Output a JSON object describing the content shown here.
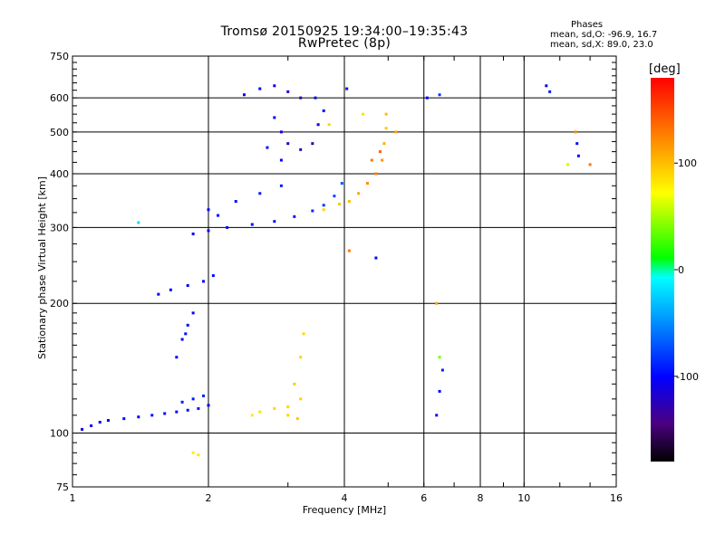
{
  "title_line1": "Tromsø 20150925 19:34:00–19:35:43",
  "title_line2": "RwPretec (8p)",
  "stats": {
    "heading": "Phases",
    "line1": "mean, sd,O: -96.9, 16.7",
    "line2": "mean, sd,X:  89.0, 23.0"
  },
  "colorbar": {
    "unit": "[deg]",
    "ticks": [
      {
        "value": 100,
        "label": "100"
      },
      {
        "value": 0,
        "label": "0"
      },
      {
        "value": -100,
        "label": "-100"
      }
    ],
    "range": [
      -180,
      180
    ]
  },
  "chart_data": {
    "type": "scatter",
    "xlabel": "Frequency [MHz]",
    "ylabel": "Stationary phase Virtual Height [km]",
    "x_scale": "log",
    "y_scale": "log",
    "xlim": [
      1,
      16
    ],
    "ylim": [
      75,
      750
    ],
    "xticks": [
      {
        "value": 1,
        "label": "1"
      },
      {
        "value": 2,
        "label": "2"
      },
      {
        "value": 4,
        "label": "4"
      },
      {
        "value": 6,
        "label": "6"
      },
      {
        "value": 8,
        "label": "8"
      },
      {
        "value": 10,
        "label": "10"
      },
      {
        "value": 16,
        "label": "16"
      }
    ],
    "yticks": [
      {
        "value": 75,
        "label": "75"
      },
      {
        "value": 100,
        "label": "100"
      },
      {
        "value": 200,
        "label": "200"
      },
      {
        "value": 300,
        "label": "300"
      },
      {
        "value": 400,
        "label": "400"
      },
      {
        "value": 500,
        "label": "500"
      },
      {
        "value": 600,
        "label": "600"
      },
      {
        "value": 750,
        "label": "750"
      }
    ],
    "grid": true,
    "color_variable": "phase (deg)",
    "points": [
      [
        1.05,
        102,
        -105
      ],
      [
        1.1,
        104,
        -102
      ],
      [
        1.15,
        106,
        -100
      ],
      [
        1.2,
        107,
        -104
      ],
      [
        1.3,
        108,
        -98
      ],
      [
        1.4,
        109,
        -100
      ],
      [
        1.5,
        110,
        -95
      ],
      [
        1.6,
        111,
        -97
      ],
      [
        1.7,
        112,
        -99
      ],
      [
        1.8,
        113,
        -96
      ],
      [
        1.9,
        114,
        -94
      ],
      [
        2.0,
        116,
        -100
      ],
      [
        1.75,
        118,
        -90
      ],
      [
        1.85,
        120,
        -92
      ],
      [
        1.95,
        122,
        -88
      ],
      [
        1.7,
        150,
        -100
      ],
      [
        1.75,
        165,
        -102
      ],
      [
        1.8,
        178,
        -98
      ],
      [
        1.85,
        190,
        -104
      ],
      [
        1.78,
        170,
        -96
      ],
      [
        1.55,
        210,
        -100
      ],
      [
        1.65,
        215,
        -98
      ],
      [
        1.8,
        220,
        -102
      ],
      [
        1.95,
        225,
        -99
      ],
      [
        2.05,
        232,
        -97
      ],
      [
        1.85,
        290,
        -100
      ],
      [
        2.0,
        295,
        -102
      ],
      [
        2.2,
        300,
        -96
      ],
      [
        2.5,
        305,
        -98
      ],
      [
        2.8,
        310,
        -95
      ],
      [
        3.1,
        318,
        -92
      ],
      [
        3.4,
        328,
        -85
      ],
      [
        3.6,
        338,
        -80
      ],
      [
        3.8,
        355,
        -75
      ],
      [
        3.95,
        380,
        -70
      ],
      [
        2.0,
        330,
        -100
      ],
      [
        2.1,
        320,
        -98
      ],
      [
        2.3,
        345,
        -95
      ],
      [
        2.6,
        360,
        -90
      ],
      [
        2.9,
        375,
        -92
      ],
      [
        3.6,
        330,
        90
      ],
      [
        3.9,
        340,
        95
      ],
      [
        4.1,
        345,
        100
      ],
      [
        4.3,
        360,
        110
      ],
      [
        4.5,
        380,
        120
      ],
      [
        4.7,
        400,
        125
      ],
      [
        4.85,
        430,
        118
      ],
      [
        4.9,
        470,
        105
      ],
      [
        4.95,
        510,
        95
      ],
      [
        4.95,
        550,
        100
      ],
      [
        4.6,
        430,
        130
      ],
      [
        4.8,
        450,
        140
      ],
      [
        3.7,
        520,
        90
      ],
      [
        4.4,
        550,
        85
      ],
      [
        5.2,
        500,
        110
      ],
      [
        2.4,
        610,
        -105
      ],
      [
        2.6,
        630,
        -100
      ],
      [
        2.8,
        640,
        -110
      ],
      [
        3.0,
        620,
        -115
      ],
      [
        3.2,
        600,
        -120
      ],
      [
        2.8,
        540,
        -100
      ],
      [
        2.9,
        500,
        -110
      ],
      [
        3.0,
        470,
        -120
      ],
      [
        3.2,
        455,
        -130
      ],
      [
        3.4,
        470,
        -125
      ],
      [
        3.5,
        520,
        -110
      ],
      [
        3.6,
        560,
        -100
      ],
      [
        3.45,
        600,
        -105
      ],
      [
        2.7,
        460,
        -95
      ],
      [
        2.9,
        430,
        -100
      ],
      [
        2.6,
        112,
        85
      ],
      [
        2.8,
        114,
        88
      ],
      [
        3.0,
        115,
        90
      ],
      [
        3.2,
        120,
        92
      ],
      [
        3.1,
        130,
        95
      ],
      [
        3.2,
        150,
        90
      ],
      [
        3.25,
        170,
        88
      ],
      [
        2.5,
        110,
        80
      ],
      [
        3.0,
        110,
        92
      ],
      [
        3.15,
        108,
        95
      ],
      [
        1.85,
        90,
        80
      ],
      [
        1.9,
        89,
        82
      ],
      [
        4.05,
        630,
        -95
      ],
      [
        6.1,
        600,
        -100
      ],
      [
        6.5,
        610,
        -80
      ],
      [
        11.2,
        640,
        -110
      ],
      [
        11.4,
        620,
        -90
      ],
      [
        13.0,
        500,
        120
      ],
      [
        13.1,
        470,
        -95
      ],
      [
        13.2,
        440,
        -100
      ],
      [
        14.0,
        420,
        130
      ],
      [
        12.5,
        420,
        60
      ],
      [
        6.4,
        200,
        110
      ],
      [
        6.5,
        150,
        40
      ],
      [
        6.6,
        140,
        -90
      ],
      [
        6.5,
        125,
        -100
      ],
      [
        6.4,
        110,
        -95
      ],
      [
        4.7,
        255,
        -105
      ],
      [
        4.1,
        265,
        130
      ],
      [
        1.4,
        308,
        -20
      ]
    ]
  }
}
